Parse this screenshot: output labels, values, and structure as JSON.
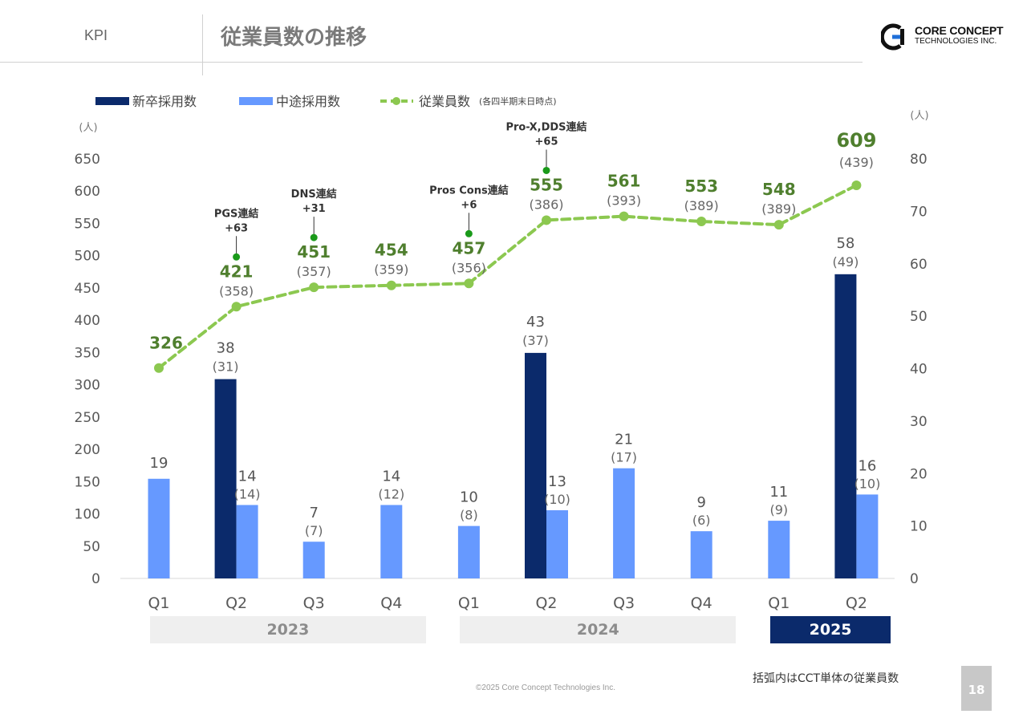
{
  "header": {
    "section": "KPI",
    "title": "従業員数の推移",
    "logo_main": "CORE CONCEPT",
    "logo_sub": "TECHNOLOGIES INC."
  },
  "legend": {
    "new_grad": "新卒採用数",
    "mid_career": "中途採用数",
    "employees": "従業員数",
    "employees_note": "(各四半期末日時点)"
  },
  "footer": {
    "note": "括弧内はCCT単体の従業員数",
    "copyright": "©2025 Core Concept Technologies Inc.",
    "page": "18"
  },
  "colors": {
    "new_grad": "#0b2a6b",
    "mid_career": "#6699ff",
    "employees": "#8cc850",
    "employee_label": "#4f7f2e",
    "annotation_dot": "#1a9a1a",
    "year_active_bg": "#0b2a6b",
    "year_inactive_bg": "#efefef"
  },
  "chart_data": {
    "type": "bar+line",
    "categories": [
      "Q1",
      "Q2",
      "Q3",
      "Q4",
      "Q1",
      "Q2",
      "Q3",
      "Q4",
      "Q1",
      "Q2"
    ],
    "years": [
      {
        "label": "2023",
        "start": 0,
        "end": 3,
        "active": false
      },
      {
        "label": "2024",
        "start": 4,
        "end": 7,
        "active": false
      },
      {
        "label": "2025",
        "start": 8,
        "end": 9,
        "active": true
      }
    ],
    "left_axis": {
      "unit": "(人)",
      "min": 0,
      "max": 650,
      "ticks": [
        0,
        50,
        100,
        150,
        200,
        250,
        300,
        350,
        400,
        450,
        500,
        550,
        600,
        650
      ]
    },
    "right_axis": {
      "unit": "(人)",
      "min": 0,
      "max": 80,
      "ticks": [
        0,
        10,
        20,
        30,
        40,
        50,
        60,
        70,
        80
      ]
    },
    "series": [
      {
        "name": "新卒採用数",
        "type": "bar",
        "axis": "right",
        "values": [
          null,
          38,
          null,
          null,
          null,
          43,
          null,
          null,
          null,
          58
        ],
        "labels": [
          "",
          "38",
          "",
          "",
          "",
          "43",
          "",
          "",
          "",
          "58"
        ],
        "sublabels": [
          "",
          "(31)",
          "",
          "",
          "",
          "(37)",
          "",
          "",
          "",
          "(49)"
        ]
      },
      {
        "name": "中途採用数",
        "type": "bar",
        "axis": "right",
        "values": [
          19,
          14,
          7,
          14,
          10,
          13,
          21,
          9,
          11,
          16
        ],
        "labels": [
          "19",
          "14",
          "7",
          "14",
          "10",
          "13",
          "21",
          "9",
          "11",
          "16"
        ],
        "sublabels": [
          "",
          "(14)",
          "(7)",
          "(12)",
          "(8)",
          "(10)",
          "(17)",
          "(6)",
          "(9)",
          "(10)"
        ]
      },
      {
        "name": "従業員数",
        "type": "line",
        "axis": "left",
        "values": [
          326,
          421,
          451,
          454,
          457,
          555,
          561,
          553,
          548,
          609
        ],
        "labels": [
          "326",
          "421",
          "451",
          "454",
          "457",
          "555",
          "561",
          "553",
          "548",
          "609"
        ],
        "sublabels": [
          "",
          "(358)",
          "(357)",
          "(359)",
          "(356)",
          "(386)",
          "(393)",
          "(389)",
          "(389)",
          "(439)"
        ]
      }
    ],
    "annotations": [
      {
        "index": 1,
        "lines": [
          "PGS連結",
          "+63"
        ]
      },
      {
        "index": 2,
        "lines": [
          "DNS連結",
          "+31"
        ]
      },
      {
        "index": 4,
        "lines": [
          "Pros Cons連結",
          "+6"
        ]
      },
      {
        "index": 5,
        "lines": [
          "Pro-X,DDS連結",
          "+65"
        ]
      }
    ]
  }
}
